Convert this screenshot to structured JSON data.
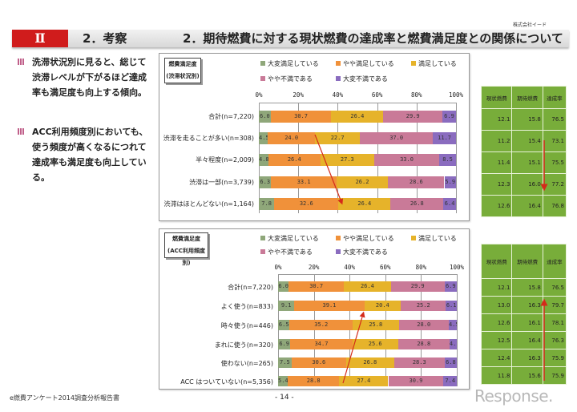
{
  "company": "株式会社イード",
  "header": {
    "chapter": "Ⅱ",
    "section": "2．考察",
    "title": "2．期待燃費に対する現状燃費の達成率と燃費満足度との関係について"
  },
  "bullets": [
    "洗滞状況別に見ると、総じて渋滞レベルが下がるほど達成率も満足度も向上する傾向。",
    "ACC利用頻度別においても、使う頻度が高くなるにつれて達成率も満足度も向上している。"
  ],
  "legend": [
    {
      "label": "大変満足している",
      "color": "#8fa77a"
    },
    {
      "label": "やや満足している",
      "color": "#f0913a"
    },
    {
      "label": "満足している",
      "color": "#e6b32a"
    },
    {
      "label": "やや不満である",
      "color": "#c97a98"
    },
    {
      "label": "大変不満である",
      "color": "#8a6cbf"
    }
  ],
  "chart_data": [
    {
      "type": "bar",
      "stacked": true,
      "orientation": "horizontal",
      "box_label": [
        "燃費満足度",
        "(渋滞状況別)"
      ],
      "ticks": [
        "0%",
        "20%",
        "40%",
        "60%",
        "80%",
        "100%"
      ],
      "xlim": [
        0,
        100
      ],
      "categories": [
        "合計(n=7,220)",
        "渋滞を走ることが多い(n=308)",
        "半々程度(n=2,009)",
        "渋滞は一部(n=3,739)",
        "渋滞はほとんどない(n=1,164)"
      ],
      "rows": [
        [
          6.0,
          30.7,
          26.4,
          29.9,
          6.9
        ],
        [
          4.5,
          24.0,
          22.7,
          37.0,
          11.7
        ],
        [
          4.8,
          26.4,
          27.3,
          33.0,
          8.5
        ],
        [
          6.3,
          33.1,
          26.2,
          28.6,
          5.9
        ],
        [
          7.8,
          32.6,
          26.4,
          26.8,
          6.4
        ]
      ]
    },
    {
      "type": "bar",
      "stacked": true,
      "orientation": "horizontal",
      "box_label": [
        "燃費満足度",
        "(ACC利用頻度別)"
      ],
      "ticks": [
        "0%",
        "20%",
        "40%",
        "60%",
        "80%",
        "100%"
      ],
      "xlim": [
        0,
        100
      ],
      "categories": [
        "合計(n=7,220)",
        "よく使う(n=833)",
        "時々使う(n=446)",
        "まれに使う(n=320)",
        "使わない(n=265)",
        "ACC はついていない(n=5,356)"
      ],
      "rows": [
        [
          6.0,
          30.7,
          26.4,
          29.9,
          6.9
        ],
        [
          9.1,
          39.1,
          20.4,
          25.2,
          6.1
        ],
        [
          6.5,
          35.2,
          25.8,
          28.0,
          4.5
        ],
        [
          6.9,
          34.7,
          25.6,
          28.8,
          4.1
        ],
        [
          7.5,
          30.6,
          26.8,
          28.3,
          6.8
        ],
        [
          5.4,
          28.8,
          27.4,
          30.9,
          7.4
        ]
      ]
    }
  ],
  "tables": [
    {
      "headers": [
        "現状燃費",
        "期待燃費",
        "達成率"
      ],
      "rows": [
        [
          "12.1",
          "15.8",
          "76.5"
        ],
        [
          "11.2",
          "15.4",
          "73.1"
        ],
        [
          "11.4",
          "15.1",
          "75.5"
        ],
        [
          "12.3",
          "16.0",
          "77.2"
        ],
        [
          "12.6",
          "16.4",
          "76.8"
        ]
      ]
    },
    {
      "headers": [
        "現状燃費",
        "期待燃費",
        "達成率"
      ],
      "rows": [
        [
          "12.1",
          "15.8",
          "76.5"
        ],
        [
          "13.0",
          "16.3",
          "79.7"
        ],
        [
          "12.6",
          "16.1",
          "78.1"
        ],
        [
          "12.5",
          "16.4",
          "76.3"
        ],
        [
          "12.4",
          "16.3",
          "75.9"
        ],
        [
          "11.8",
          "15.6",
          "75.9"
        ]
      ]
    }
  ],
  "footer": {
    "left": "e燃費アンケート2014調査分析報告書",
    "page": "- 14 -",
    "logo": "Response."
  },
  "arrow_color": "#d42a1a"
}
